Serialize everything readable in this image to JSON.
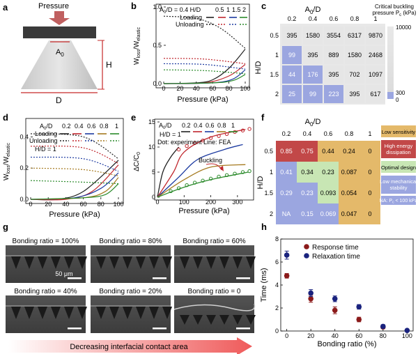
{
  "panels": {
    "a": {
      "label": "a",
      "pressure": "Pressure",
      "a0": "A",
      "a0_sub": "0",
      "h": "H",
      "d": "D"
    },
    "b": {
      "label": "b"
    },
    "c": {
      "label": "c"
    },
    "d": {
      "label": "d"
    },
    "e": {
      "label": "e"
    },
    "f": {
      "label": "f"
    },
    "g": {
      "label": "g",
      "scale_bar": "50 μm",
      "images": [
        {
          "caption": "Bonding ratio = 100%"
        },
        {
          "caption": "Bonding ratio = 80%"
        },
        {
          "caption": "Bonding ratio = 60%"
        },
        {
          "caption": "Bonding ratio = 40%"
        },
        {
          "caption": "Bonding ratio = 20%"
        },
        {
          "caption": "Bonding ratio = 0"
        }
      ],
      "arrow_text": "Decreasing interfacial contact area"
    },
    "h": {
      "label": "h"
    }
  },
  "chart_data": [
    {
      "id": "b",
      "type": "line",
      "xlabel": "Pressure (kPa)",
      "ylabel": "W",
      "ylabel_sub": "loss",
      "ylabel_mid": "/W",
      "ylabel_sub2": "elastic",
      "xlim": [
        0,
        100
      ],
      "ylim": [
        0,
        1.0
      ],
      "xticks": [
        "0",
        "20",
        "40",
        "60",
        "80",
        "100"
      ],
      "yticks": [
        "0.0",
        "0.5",
        "1.0"
      ],
      "legend": {
        "line1": "A",
        "line1_sub": "0",
        "line1_rest": "/D = 0.4  H/D",
        "hd_values": [
          "0.5",
          "1",
          "1.5",
          "2"
        ],
        "loading": "Loading",
        "unloading": "Unloading"
      },
      "series": [
        {
          "name": "0.5",
          "color": "#222222",
          "loading": [
            [
              0,
              0.0
            ],
            [
              40,
              0.01
            ],
            [
              60,
              0.05
            ],
            [
              80,
              0.2
            ],
            [
              100,
              0.45
            ]
          ],
          "unloading": [
            [
              0,
              0.88
            ],
            [
              40,
              0.85
            ],
            [
              70,
              0.72
            ],
            [
              100,
              0.46
            ]
          ]
        },
        {
          "name": "1",
          "color": "#c0262d",
          "loading": [
            [
              0,
              0.0
            ],
            [
              50,
              0.01
            ],
            [
              80,
              0.1
            ],
            [
              100,
              0.25
            ]
          ],
          "unloading": [
            [
              0,
              0.33
            ],
            [
              50,
              0.32
            ],
            [
              100,
              0.26
            ]
          ]
        },
        {
          "name": "1.5",
          "color": "#1c3aa0",
          "loading": [
            [
              0,
              0.0
            ],
            [
              60,
              0.01
            ],
            [
              85,
              0.06
            ],
            [
              100,
              0.18
            ]
          ],
          "unloading": [
            [
              0,
              0.26
            ],
            [
              50,
              0.25
            ],
            [
              100,
              0.19
            ]
          ]
        },
        {
          "name": "2",
          "color": "#2a8a2a",
          "loading": [
            [
              0,
              0.0
            ],
            [
              60,
              0.01
            ],
            [
              85,
              0.04
            ],
            [
              100,
              0.12
            ]
          ],
          "unloading": [
            [
              0,
              0.18
            ],
            [
              50,
              0.17
            ],
            [
              100,
              0.13
            ]
          ]
        }
      ]
    },
    {
      "id": "c",
      "type": "heatmap",
      "title": "A",
      "title_sub": "0",
      "title_rest": "/D",
      "ylabel": "H/D",
      "columns": [
        "0.2",
        "0.4",
        "0.6",
        "0.8",
        "1"
      ],
      "rows": [
        "0.5",
        "1",
        "1.5",
        "2"
      ],
      "values": [
        [
          "395",
          "1580",
          "3554",
          "6317",
          "9870"
        ],
        [
          "99",
          "395",
          "889",
          "1580",
          "2468"
        ],
        [
          "44",
          "176",
          "395",
          "702",
          "1097"
        ],
        [
          "25",
          "99",
          "223",
          "395",
          "617"
        ]
      ],
      "colorbar": {
        "title": "Critical buckling",
        "title2": "pressure P",
        "title2_sub": "c",
        "title2_rest": " (kPa)",
        "max": "10000",
        "mid": "300",
        "min": "0"
      }
    },
    {
      "id": "d",
      "type": "line",
      "xlabel": "Pressure (kPa)",
      "ylabel": "W",
      "ylabel_sub": "loss",
      "ylabel_mid": "/W",
      "ylabel_sub2": "elastic",
      "xlim": [
        0,
        100
      ],
      "ylim": [
        0,
        0.5
      ],
      "xticks": [
        "0",
        "20",
        "40",
        "60",
        "80",
        "100"
      ],
      "yticks": [
        "0.0",
        "0.2",
        "0.4"
      ],
      "legend": {
        "line1": "A",
        "line1_sub": "0",
        "line1_rest": "/D",
        "a_values": [
          "0.2",
          "0.4",
          "0.6",
          "0.8",
          "1"
        ],
        "loading": "Loading",
        "unloading": "Unloading",
        "hd": "H/D = 1"
      },
      "series": [
        {
          "name": "0.2",
          "color": "#222222",
          "loading": [
            [
              0,
              0.0
            ],
            [
              30,
              0.0
            ],
            [
              60,
              0.05
            ],
            [
              100,
              0.25
            ]
          ],
          "unloading": [
            [
              0,
              0.42
            ],
            [
              60,
              0.4
            ],
            [
              100,
              0.26
            ]
          ]
        },
        {
          "name": "0.4",
          "color": "#c0262d",
          "loading": [
            [
              0,
              0.0
            ],
            [
              40,
              0.0
            ],
            [
              70,
              0.05
            ],
            [
              100,
              0.22
            ]
          ],
          "unloading": [
            [
              0,
              0.34
            ],
            [
              60,
              0.33
            ],
            [
              100,
              0.23
            ]
          ]
        },
        {
          "name": "0.6",
          "color": "#1c3aa0",
          "loading": [
            [
              0,
              0.0
            ],
            [
              50,
              0.01
            ],
            [
              80,
              0.07
            ],
            [
              100,
              0.17
            ]
          ],
          "unloading": [
            [
              0,
              0.27
            ],
            [
              60,
              0.26
            ],
            [
              100,
              0.18
            ]
          ]
        },
        {
          "name": "0.8",
          "color": "#a5791e",
          "loading": [
            [
              0,
              0.0
            ],
            [
              60,
              0.01
            ],
            [
              85,
              0.05
            ],
            [
              100,
              0.14
            ]
          ],
          "unloading": [
            [
              0,
              0.2
            ],
            [
              60,
              0.19
            ],
            [
              100,
              0.15
            ]
          ]
        },
        {
          "name": "1",
          "color": "#2a8a2a",
          "loading": [
            [
              0,
              0.0
            ],
            [
              60,
              0.01
            ],
            [
              85,
              0.03
            ],
            [
              100,
              0.1
            ]
          ],
          "unloading": [
            [
              0,
              0.12
            ],
            [
              60,
              0.11
            ],
            [
              100,
              0.1
            ]
          ]
        }
      ]
    },
    {
      "id": "e",
      "type": "line",
      "xlabel": "Pressure (kPa)",
      "ylabel": "ΔC/C",
      "ylabel_sub": "0",
      "xlim": [
        0,
        350
      ],
      "ylim": [
        0,
        15
      ],
      "xticks": [
        "0",
        "100",
        "200",
        "300"
      ],
      "yticks": [
        "0",
        "5",
        "10",
        "15"
      ],
      "legend": {
        "line1": "A",
        "line1_sub": "0",
        "line1_rest": "/D",
        "a_values": [
          "0.2",
          "0.4",
          "0.6",
          "0.8",
          "1"
        ],
        "hd": "H/D = 1",
        "note": "Dot: experiment  Line: FEA"
      },
      "annotation": "Buckling",
      "series": [
        {
          "name": "0.2",
          "color": "#222222",
          "fea": [
            [
              0,
              0
            ],
            [
              20,
              5
            ],
            [
              50,
              8
            ],
            [
              80,
              10
            ]
          ],
          "exp": []
        },
        {
          "name": "0.4",
          "color": "#c0262d",
          "fea": [
            [
              0,
              0
            ],
            [
              60,
              5
            ],
            [
              100,
              9
            ],
            [
              200,
              12
            ],
            [
              330,
              13.5
            ]
          ],
          "exp": [
            [
              80,
              9.5
            ],
            [
              110,
              10.2
            ],
            [
              140,
              10.8
            ],
            [
              170,
              11.3
            ],
            [
              200,
              11.8
            ],
            [
              230,
              12.2
            ],
            [
              260,
              12.6
            ],
            [
              290,
              13.0
            ],
            [
              320,
              13.3
            ],
            [
              345,
              13.6
            ]
          ]
        },
        {
          "name": "0.6",
          "color": "#1c3aa0",
          "fea": [
            [
              0,
              0
            ],
            [
              80,
              4
            ],
            [
              150,
              7.5
            ],
            [
              250,
              9.5
            ],
            [
              320,
              10.5
            ]
          ],
          "exp": []
        },
        {
          "name": "0.8",
          "color": "#a5791e",
          "fea": [
            [
              0,
              0
            ],
            [
              100,
              3.5
            ],
            [
              200,
              6
            ],
            [
              330,
              6.5
            ]
          ],
          "exp": []
        },
        {
          "name": "1",
          "color": "#2a8a2a",
          "fea": [
            [
              0,
              0
            ],
            [
              100,
              2
            ],
            [
              200,
              3.5
            ],
            [
              340,
              5
            ]
          ],
          "exp": [
            [
              50,
              1.2
            ],
            [
              80,
              1.8
            ],
            [
              110,
              2.4
            ],
            [
              140,
              2.9
            ],
            [
              170,
              3.3
            ],
            [
              200,
              3.7
            ],
            [
              230,
              4.1
            ],
            [
              260,
              4.4
            ],
            [
              290,
              4.7
            ],
            [
              320,
              5.0
            ],
            [
              345,
              5.2
            ]
          ]
        }
      ]
    },
    {
      "id": "f",
      "type": "heatmap",
      "title": "A",
      "title_sub": "0",
      "title_rest": "/D",
      "ylabel": "H/D",
      "columns": [
        "0.2",
        "0.4",
        "0.6",
        "0.8",
        "1"
      ],
      "rows": [
        "0.5",
        "1",
        "1.5",
        "2"
      ],
      "values": [
        [
          "0.85",
          "0.75",
          "0.44",
          "0.24",
          "0"
        ],
        [
          "0.41",
          "0.34",
          "0.23",
          "0.087",
          "0"
        ],
        [
          "0.29",
          "0.23",
          "0.093",
          "0.054",
          "0"
        ],
        [
          "NA",
          "0.15",
          "0.069",
          "0.047",
          "0"
        ]
      ],
      "categories": [
        [
          "high",
          "high",
          "sens",
          "sens",
          "sens"
        ],
        [
          "stab",
          "opt",
          "opt",
          "sens",
          "sens"
        ],
        [
          "stab",
          "stab",
          "opt",
          "sens",
          "sens"
        ],
        [
          "stab",
          "stab",
          "stab",
          "sens",
          "sens"
        ]
      ],
      "legend": [
        {
          "key": "sens",
          "label": "Low sensitivity",
          "color": "#e4b96a"
        },
        {
          "key": "high",
          "label": "High energy dissipation",
          "color": "#c24848"
        },
        {
          "key": "opt",
          "label": "Optimal design",
          "color": "#c8e6b4"
        },
        {
          "key": "stab",
          "label": "Low mechanical stability",
          "color": "#9ba6e0"
        }
      ],
      "na_note": "NA: P",
      "na_note_sub": "c",
      "na_note_rest": " < 100 kPa"
    },
    {
      "id": "h",
      "type": "scatter",
      "xlabel": "Bonding ratio (%)",
      "ylabel": "Time (ms)",
      "xlim": [
        -5,
        105
      ],
      "ylim": [
        0,
        8
      ],
      "xticks": [
        "0",
        "20",
        "40",
        "60",
        "80",
        "100"
      ],
      "yticks": [
        "0",
        "2",
        "4",
        "6",
        "8"
      ],
      "series": [
        {
          "name": "Response time",
          "color": "#8b1a1a",
          "x": [
            0,
            20,
            40,
            60,
            80
          ],
          "y": [
            4.8,
            2.8,
            1.8,
            1.0,
            0.35
          ],
          "err": [
            0.2,
            0.3,
            0.3,
            0.2,
            0.15
          ]
        },
        {
          "name": "Relaxation time",
          "color": "#1a237e",
          "x": [
            0,
            20,
            40,
            60,
            80,
            100
          ],
          "y": [
            6.6,
            3.3,
            2.8,
            2.1,
            0.4,
            0.05
          ],
          "err": [
            0.35,
            0.3,
            0.25,
            0.2,
            0.15,
            0.05
          ]
        }
      ]
    }
  ]
}
